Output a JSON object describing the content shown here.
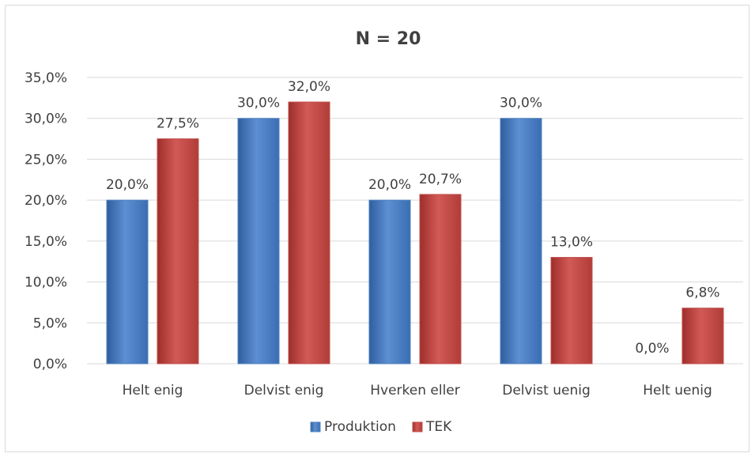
{
  "chart_data": {
    "type": "bar",
    "title": "N = 20",
    "xlabel": "",
    "ylabel": "",
    "categories": [
      "Helt enig",
      "Delvist enig",
      "Hverken eller",
      "Delvist uenig",
      "Helt uenig"
    ],
    "series": [
      {
        "name": "Produktion",
        "values": [
          20.0,
          30.0,
          20.0,
          30.0,
          0.0
        ],
        "labels": [
          "20,0%",
          "30,0%",
          "20,0%",
          "30,0%",
          "0,0%"
        ],
        "color": "#4f81bd"
      },
      {
        "name": "TEK",
        "values": [
          27.5,
          32.0,
          20.7,
          13.0,
          6.8
        ],
        "labels": [
          "27,5%",
          "32,0%",
          "20,7%",
          "13,0%",
          "6,8%"
        ],
        "color": "#c0504d"
      }
    ],
    "ylim": [
      0,
      35
    ],
    "yticks": [
      0,
      5,
      10,
      15,
      20,
      25,
      30,
      35
    ],
    "ytick_labels": [
      "0,0%",
      "5,0%",
      "10,0%",
      "15,0%",
      "20,0%",
      "25,0%",
      "30,0%",
      "35,0%"
    ],
    "grid": true,
    "legend_position": "bottom"
  }
}
